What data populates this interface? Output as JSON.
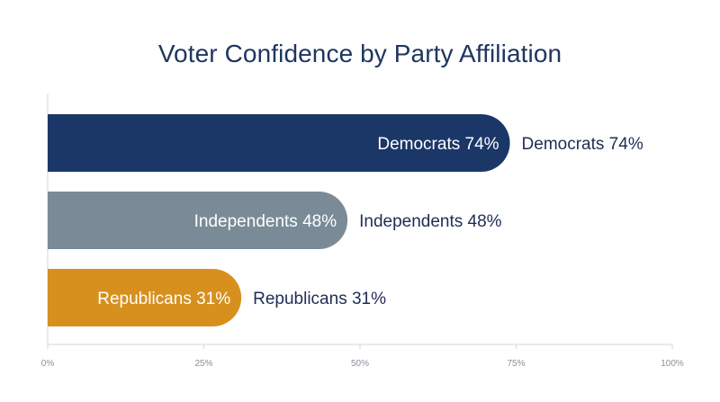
{
  "chart_data": {
    "type": "bar",
    "orientation": "horizontal",
    "title": "Voter Confidence by Party Affiliation",
    "categories": [
      "Democrats",
      "Independents",
      "Republicans"
    ],
    "values": [
      74,
      48,
      31
    ],
    "labels": [
      "Democrats 74%",
      "Independents 48%",
      "Republicans 31%"
    ],
    "colors": [
      "#1b3768",
      "#7a8b97",
      "#d7901e"
    ],
    "xlim": [
      0,
      100
    ],
    "x_ticks": [
      0,
      25,
      50,
      75,
      100
    ],
    "x_tick_labels": [
      "0%",
      "25%",
      "50%",
      "75%",
      "100%"
    ],
    "grid": false,
    "legend": "none",
    "xlabel": "",
    "ylabel": ""
  }
}
